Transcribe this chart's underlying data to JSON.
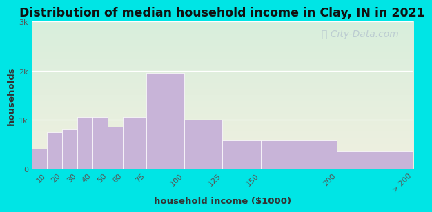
{
  "title": "Distribution of median household income in Clay, IN in 2021",
  "xlabel": "household income ($1000)",
  "ylabel": "households",
  "bar_edges": [
    0,
    10,
    20,
    30,
    40,
    50,
    60,
    75,
    100,
    125,
    150,
    200,
    250
  ],
  "bar_values": [
    400,
    750,
    800,
    1050,
    1050,
    850,
    1050,
    1950,
    1000,
    580,
    580,
    350
  ],
  "xtick_positions": [
    10,
    20,
    30,
    40,
    50,
    60,
    75,
    100,
    125,
    150,
    200,
    250
  ],
  "xtick_labels": [
    "10",
    "20",
    "30",
    "40",
    "50",
    "60",
    "75",
    "100",
    "125",
    "150",
    "200",
    "> 200"
  ],
  "bar_color": "#c8b4d8",
  "bar_edgecolor": "#ffffff",
  "ylim": [
    0,
    3000
  ],
  "yticks": [
    0,
    1000,
    2000,
    3000
  ],
  "ytick_labels": [
    "0",
    "1k",
    "2k",
    "3k"
  ],
  "xlim": [
    0,
    250
  ],
  "bg_outer": "#00e5e5",
  "bg_plot_grad_top": "#d8eedc",
  "bg_plot_grad_bottom": "#f0f0e0",
  "title_fontsize": 12.5,
  "axis_label_fontsize": 9.5,
  "tick_fontsize": 8,
  "watermark_text": "City-Data.com",
  "watermark_color": "#b8c8d0",
  "watermark_fontsize": 10
}
